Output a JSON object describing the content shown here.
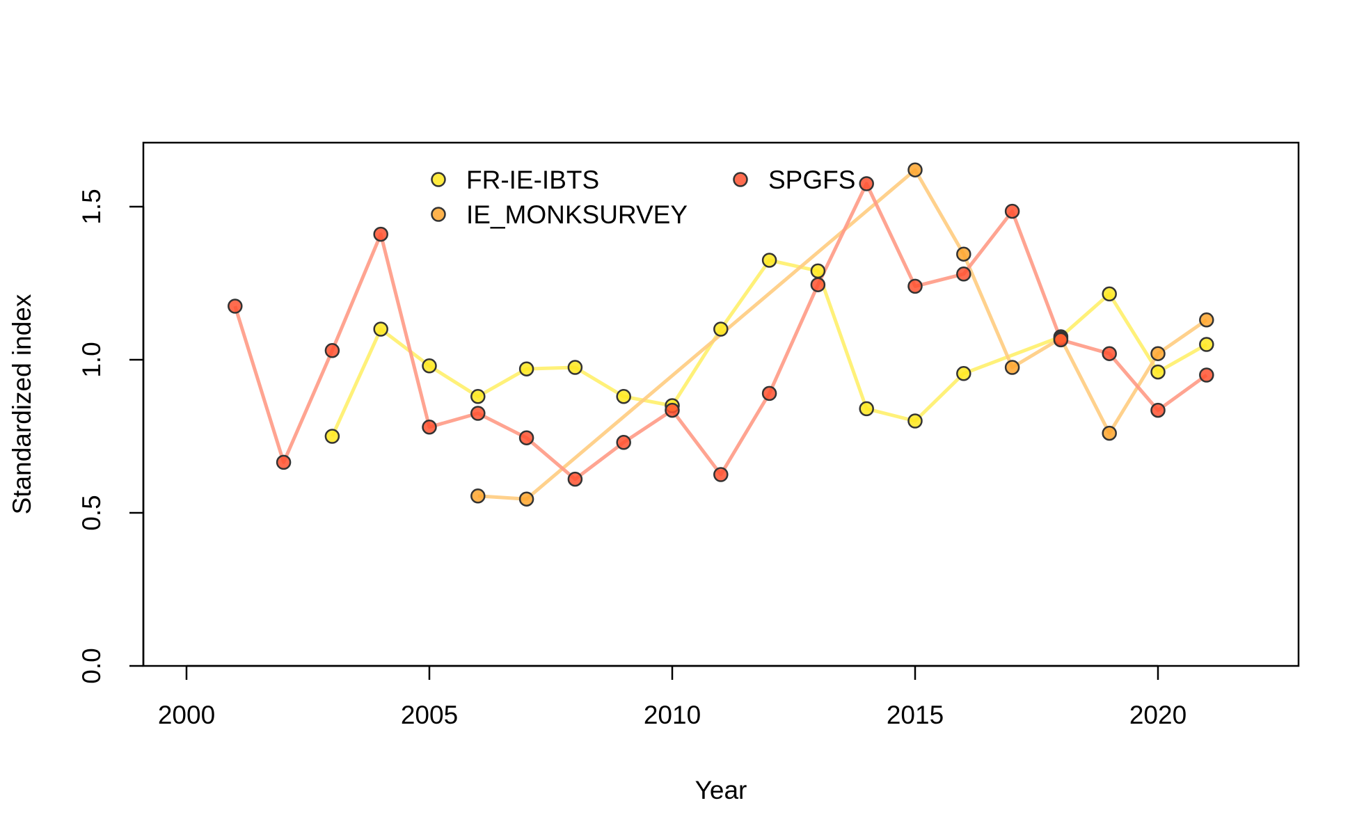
{
  "chart_data": {
    "type": "line",
    "xlabel": "Year",
    "ylabel": "Standardized index",
    "xlim": [
      1999,
      2022.5
    ],
    "ylim": [
      0,
      1.7
    ],
    "x_ticks": [
      "2000",
      "2005",
      "2010",
      "2015",
      "2020"
    ],
    "y_ticks": [
      "0.0",
      "0.5",
      "1.0",
      "1.5"
    ],
    "grid": false,
    "legend_position": "top",
    "series": [
      {
        "name": "FR-IE-IBTS",
        "color": "#ffe81e",
        "line_color": "#fff06a",
        "x": [
          2003,
          2004,
          2005,
          2006,
          2007,
          2008,
          2009,
          2010,
          2011,
          2012,
          2013,
          2014,
          2015,
          2016,
          2018,
          2019,
          2020,
          2021
        ],
        "y": [
          0.75,
          1.1,
          0.98,
          0.88,
          0.97,
          0.975,
          0.88,
          0.85,
          1.1,
          1.325,
          1.29,
          0.84,
          0.8,
          0.955,
          1.075,
          1.215,
          0.96,
          1.05
        ]
      },
      {
        "name": "IE_MONKSURVEY",
        "color": "#ffa62e",
        "line_color": "#ffcc80",
        "x": [
          2006,
          2007,
          2015,
          2016,
          2017,
          2018,
          2019,
          2020,
          2021
        ],
        "y": [
          0.555,
          0.545,
          1.62,
          1.345,
          0.975,
          1.07,
          0.76,
          1.02,
          1.13
        ]
      },
      {
        "name": "SPGFS",
        "color": "#ff5230",
        "line_color": "#ff9a85",
        "x": [
          2001,
          2002,
          2003,
          2004,
          2005,
          2006,
          2007,
          2008,
          2009,
          2010,
          2011,
          2012,
          2013,
          2014,
          2015,
          2016,
          2017,
          2018,
          2019,
          2020,
          2021
        ],
        "y": [
          1.175,
          0.665,
          1.03,
          1.41,
          0.78,
          0.825,
          0.745,
          0.61,
          0.73,
          0.835,
          0.625,
          0.89,
          1.245,
          1.575,
          1.24,
          1.28,
          1.485,
          1.065,
          1.02,
          0.835,
          0.95
        ]
      }
    ]
  }
}
